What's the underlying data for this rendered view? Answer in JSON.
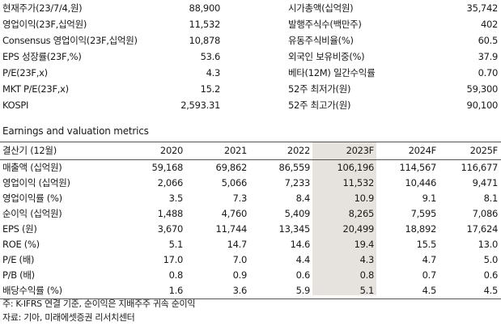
{
  "stats": [
    {
      "label_left": "현재주가(23/7/4,원)",
      "value_left": "88,900",
      "label_right": "시가총액(십억원)",
      "value_right": "35,742"
    },
    {
      "label_left": "영업이익(23F,십억원)",
      "value_left": "11,532",
      "label_right": "발행주식수(백만주)",
      "value_right": "402"
    },
    {
      "label_left": "Consensus 영업이익(23F,십억원)",
      "value_left": "10,878",
      "label_right": "유동주식비율(%)",
      "value_right": "60.5"
    },
    {
      "label_left": "EPS 성장률(23F,%)",
      "value_left": "53.6",
      "label_right": "외국인 보유비중(%)",
      "value_right": "37.9"
    },
    {
      "label_left": "P/E(23F,x)",
      "value_left": "4.3",
      "label_right": "베타(12M) 일간수익률",
      "value_right": "0.70"
    },
    {
      "label_left": "MKT P/E(23F,x)",
      "value_left": "15.2",
      "label_right": "52주 최저가(원)",
      "value_right": "59,300"
    },
    {
      "label_left": "KOSPI",
      "value_left": "2,593.31",
      "label_right": "52주 최고가(원)",
      "value_right": "90,100"
    }
  ],
  "metrics": {
    "title": "Earnings and valuation metrics",
    "header": [
      "결산기 (12월)",
      "2020",
      "2021",
      "2022",
      "2023F",
      "2024F",
      "2025F"
    ],
    "rows": [
      [
        "매출액 (십억원)",
        "59,168",
        "69,862",
        "86,559",
        "106,196",
        "114,567",
        "116,677"
      ],
      [
        "영업이익 (십억원)",
        "2,066",
        "5,066",
        "7,233",
        "11,532",
        "10,446",
        "9,471"
      ],
      [
        "영업이익률 (%)",
        "3.5",
        "7.3",
        "8.4",
        "10.9",
        "9.1",
        "8.1"
      ],
      [
        "순이익 (십억원)",
        "1,488",
        "4,760",
        "5,409",
        "8,265",
        "7,595",
        "7,086"
      ],
      [
        "EPS (원)",
        "3,670",
        "11,744",
        "13,345",
        "20,499",
        "18,892",
        "17,624"
      ],
      [
        "ROE (%)",
        "5.1",
        "14.7",
        "14.6",
        "19.4",
        "15.5",
        "13.0"
      ],
      [
        "P/E (배)",
        "17.0",
        "7.0",
        "4.4",
        "4.3",
        "4.7",
        "5.0"
      ],
      [
        "P/B (배)",
        "0.8",
        "0.9",
        "0.6",
        "0.8",
        "0.7",
        "0.6"
      ],
      [
        "배당수익률 (%)",
        "1.6",
        "3.6",
        "5.9",
        "5.1",
        "4.5",
        "4.5"
      ]
    ],
    "highlight_color": "#e6e2dd"
  },
  "notes": [
    "주: K-IFRS 연결 기준, 순이익은 지배주주 귀속 순이익",
    "자료: 기아, 미래에셋증권 리서치센터"
  ]
}
